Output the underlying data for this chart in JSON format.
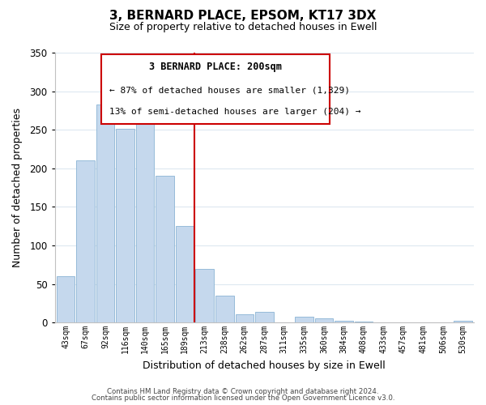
{
  "title": "3, BERNARD PLACE, EPSOM, KT17 3DX",
  "subtitle": "Size of property relative to detached houses in Ewell",
  "xlabel": "Distribution of detached houses by size in Ewell",
  "ylabel": "Number of detached properties",
  "bar_labels": [
    "43sqm",
    "67sqm",
    "92sqm",
    "116sqm",
    "140sqm",
    "165sqm",
    "189sqm",
    "213sqm",
    "238sqm",
    "262sqm",
    "287sqm",
    "311sqm",
    "335sqm",
    "360sqm",
    "384sqm",
    "408sqm",
    "433sqm",
    "457sqm",
    "481sqm",
    "506sqm",
    "530sqm"
  ],
  "bar_values": [
    60,
    210,
    283,
    251,
    272,
    190,
    125,
    70,
    35,
    11,
    14,
    0,
    7,
    5,
    2,
    1,
    0,
    0,
    0,
    0,
    2
  ],
  "bar_color": "#c5d8ed",
  "bar_edge_color": "#8ab4d4",
  "ylim": [
    0,
    350
  ],
  "yticks": [
    0,
    50,
    100,
    150,
    200,
    250,
    300,
    350
  ],
  "vline_x_bar_index": 6,
  "vline_color": "#cc0000",
  "annotation_title": "3 BERNARD PLACE: 200sqm",
  "annotation_line1": "← 87% of detached houses are smaller (1,329)",
  "annotation_line2": "13% of semi-detached houses are larger (204) →",
  "annotation_box_color": "#ffffff",
  "annotation_box_edge": "#cc0000",
  "footer_line1": "Contains HM Land Registry data © Crown copyright and database right 2024.",
  "footer_line2": "Contains public sector information licensed under the Open Government Licence v3.0.",
  "background_color": "#ffffff",
  "grid_color": "#dde8f0"
}
